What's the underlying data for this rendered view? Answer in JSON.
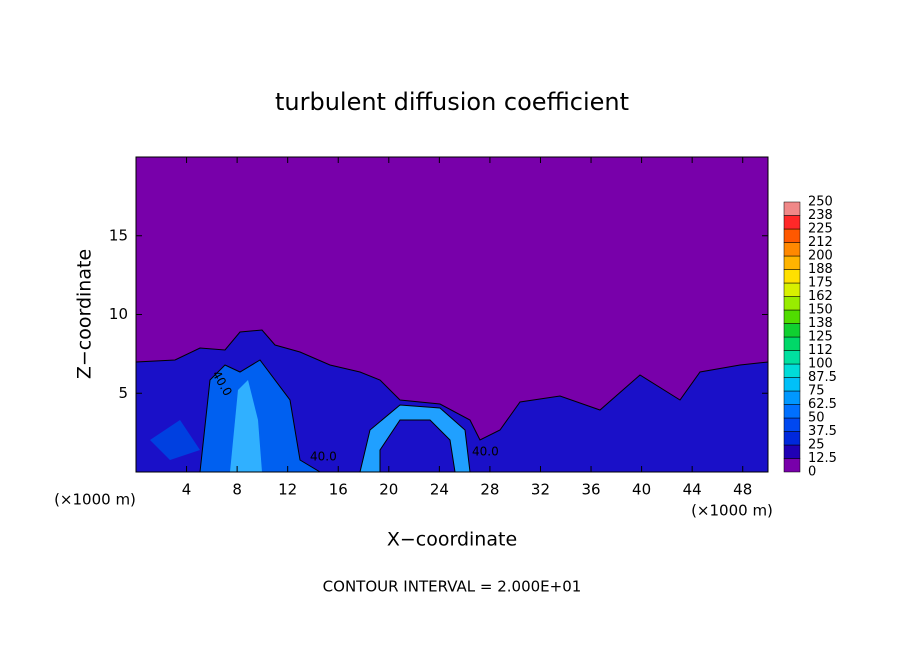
{
  "chart_data": {
    "type": "contour",
    "title": "turbulent diffusion coefficient",
    "x_label": "X−coordinate",
    "y_label": "Z−coordinate",
    "x_unit_label": "(×1000 m)",
    "y_unit_label": "(×1000 m)",
    "footer": "CONTOUR INTERVAL = 2.000E+01",
    "contour_labels": [
      "40.0",
      "40.0",
      "40.0"
    ],
    "xlim": [
      0,
      50
    ],
    "xticks": [
      4,
      8,
      12,
      16,
      20,
      24,
      28,
      32,
      36,
      40,
      44,
      48
    ],
    "ylim": [
      0,
      20
    ],
    "yticks": [
      5,
      10,
      15
    ],
    "colorbar": {
      "levels": [
        0,
        12.5,
        25,
        37.5,
        50,
        62.5,
        75,
        87.5,
        100,
        112,
        125,
        138,
        150,
        162,
        175,
        188,
        200,
        212,
        225,
        238,
        250
      ],
      "colors": [
        "#7800aa",
        "#2000b4",
        "#0028dc",
        "#0048f0",
        "#0070ff",
        "#0098ff",
        "#00c0f8",
        "#00dcd8",
        "#00e0a0",
        "#00d868",
        "#10d030",
        "#50dc00",
        "#98ec00",
        "#d8f000",
        "#ffe000",
        "#ffb400",
        "#ff8800",
        "#ff5800",
        "#ff2828",
        "#f08888"
      ]
    }
  }
}
